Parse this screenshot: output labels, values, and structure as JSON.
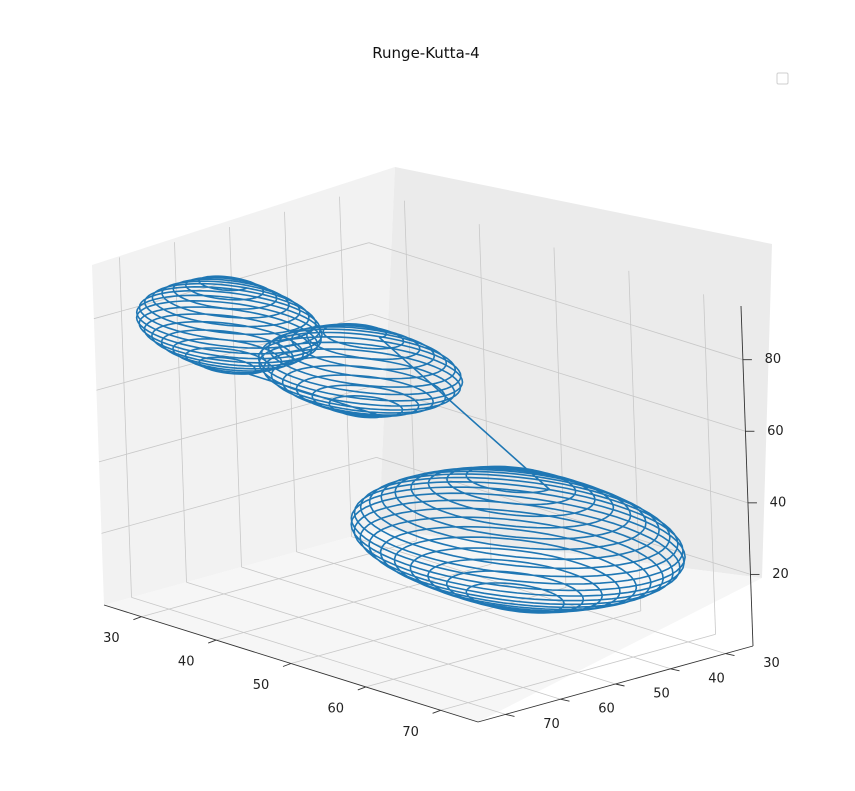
{
  "chart_data": {
    "type": "line",
    "title": "Runge-Kutta-4",
    "xlabel": "",
    "ylabel": "",
    "zlabel": "",
    "projection": "3d",
    "grid": true,
    "legend": {
      "placement": "upper-right",
      "entries": []
    },
    "x_ticks": [
      "30",
      "40",
      "50",
      "60",
      "70"
    ],
    "y_ticks": [
      "30",
      "40",
      "50",
      "60",
      "70"
    ],
    "z_ticks": [
      "20",
      "40",
      "60",
      "80"
    ],
    "xlim": [
      25,
      75
    ],
    "ylim": [
      25,
      75
    ],
    "zlim": [
      0,
      95
    ],
    "series": [
      {
        "color": "#1f77b4",
        "trajectory": "coupled spiral with three lobes",
        "lobes": [
          {
            "x_center": 35,
            "y_center": 64,
            "z_range": [
              68,
              92
            ],
            "radius": 10,
            "turns": 16
          },
          {
            "x_center": 33,
            "y_center": 38,
            "z_range": [
              44,
              66
            ],
            "radius": 11,
            "turns": 14
          },
          {
            "x_center": 55,
            "y_center": 40,
            "z_range": [
              6,
              40
            ],
            "radius": 18,
            "turns": 20
          }
        ]
      }
    ]
  }
}
